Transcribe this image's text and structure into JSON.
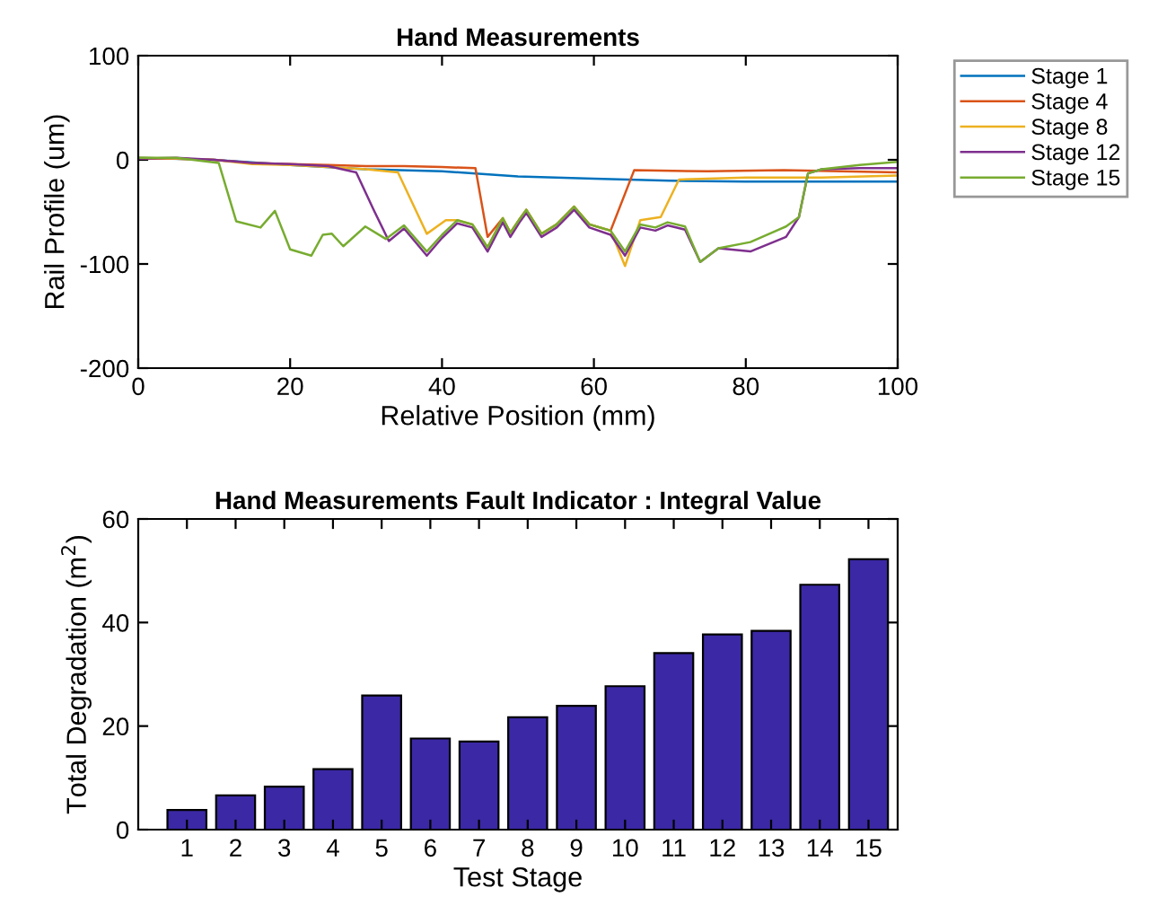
{
  "chart_data": [
    {
      "type": "line",
      "title": "Hand Measurements",
      "xlabel": "Relative Position (mm)",
      "ylabel": "Rail Profile (um)",
      "xlim": [
        0,
        100
      ],
      "ylim": [
        -200,
        100
      ],
      "xticks": [
        0,
        20,
        40,
        60,
        80,
        100
      ],
      "yticks": [
        -200,
        -100,
        0,
        100
      ],
      "legend": "top right",
      "grid": false,
      "line_style": "solid",
      "marker": "none",
      "series": [
        {
          "name": "Stage 1",
          "color": "#0072bd",
          "x": [
            0,
            10,
            20,
            30,
            40,
            50,
            60,
            70,
            80,
            90,
            100
          ],
          "values": [
            2,
            0,
            -5,
            -9,
            -11,
            -16,
            -18,
            -20,
            -21,
            -21,
            -21
          ]
        },
        {
          "name": "Stage 4",
          "color": "#d95319",
          "x": [
            0,
            5,
            10,
            15,
            20,
            25,
            30,
            35,
            40,
            44.4,
            46,
            48,
            49,
            50.3,
            51.1,
            53.1,
            55.1,
            57.4,
            59.4,
            62.2,
            65.3,
            75,
            85,
            100
          ],
          "values": [
            1,
            1,
            0,
            -3,
            -4,
            -5,
            -6,
            -6,
            -7,
            -8,
            -74,
            -56,
            -70,
            -56,
            -48,
            -71,
            -62,
            -45,
            -62,
            -68,
            -10,
            -11,
            -10,
            -12
          ]
        },
        {
          "name": "Stage 8",
          "color": "#edb120",
          "x": [
            0,
            5,
            10,
            15,
            20,
            25,
            30,
            34.2,
            38,
            40.5,
            42,
            44,
            46,
            48,
            49,
            50.3,
            51.1,
            53.1,
            55.1,
            57.4,
            59.4,
            62.2,
            64.1,
            66.1,
            68.8,
            71.2,
            80,
            90,
            100
          ],
          "values": [
            2,
            1,
            0,
            -4,
            -5,
            -7,
            -9,
            -12,
            -71,
            -58,
            -58,
            -62,
            -84,
            -56,
            -70,
            -56,
            -48,
            -71,
            -62,
            -45,
            -62,
            -68,
            -102,
            -58,
            -55,
            -19,
            -17,
            -17,
            -15
          ]
        },
        {
          "name": "Stage 12",
          "color": "#7e2f8e",
          "x": [
            0,
            5,
            10,
            15,
            20,
            25,
            28.7,
            31,
            33,
            35,
            38,
            40,
            42,
            44,
            46,
            48,
            49,
            50.3,
            51.1,
            53.1,
            55.1,
            57.4,
            59.4,
            62.2,
            64.1,
            66.1,
            68.1,
            69.7,
            72,
            74,
            76.4,
            80.6,
            85.3,
            87,
            88.2,
            90,
            95,
            100
          ],
          "values": [
            1,
            2,
            0,
            -3,
            -4,
            -6,
            -12,
            -48,
            -78,
            -66,
            -92,
            -75,
            -61,
            -65,
            -88,
            -60,
            -74,
            -59,
            -51,
            -74,
            -65,
            -48,
            -65,
            -72,
            -92,
            -65,
            -68,
            -63,
            -67,
            -98,
            -85,
            -88,
            -74,
            -55,
            -13,
            -9,
            -8,
            -8
          ]
        },
        {
          "name": "Stage 15",
          "color": "#77ac30",
          "x": [
            0,
            5,
            10.6,
            12.9,
            16.1,
            18,
            20,
            22.8,
            24.3,
            25.5,
            27,
            29.9,
            32.6,
            35,
            38,
            40,
            42,
            44,
            46,
            48,
            49,
            50.3,
            51.1,
            53.1,
            55.1,
            57.4,
            59.4,
            62.2,
            64.1,
            66.1,
            68.1,
            69.7,
            72,
            74,
            76.4,
            80.6,
            85.3,
            87,
            88.2,
            90,
            95,
            100
          ],
          "values": [
            2,
            2,
            -3,
            -59,
            -65,
            -49,
            -86,
            -92,
            -72,
            -71,
            -83,
            -64,
            -76,
            -63,
            -88,
            -72,
            -58,
            -62,
            -84,
            -56,
            -70,
            -56,
            -48,
            -71,
            -62,
            -45,
            -62,
            -68,
            -88,
            -62,
            -65,
            -60,
            -64,
            -98,
            -85,
            -79,
            -64,
            -55,
            -13,
            -9,
            -5,
            -2
          ]
        }
      ]
    },
    {
      "type": "bar",
      "title": "Hand Measurements Fault Indicator : Integral Value",
      "xlabel": "Test Stage",
      "ylabel": "Total Degradation (m$^{2}$)",
      "categories": [
        "1",
        "2",
        "3",
        "4",
        "5",
        "6",
        "7",
        "8",
        "9",
        "10",
        "11",
        "12",
        "13",
        "14",
        "15"
      ],
      "values": [
        3.8,
        6.6,
        8.3,
        11.7,
        25.9,
        17.6,
        17.0,
        21.7,
        23.9,
        27.7,
        34.1,
        37.7,
        38.4,
        47.3,
        52.2
      ],
      "color": "#3a28a5",
      "ylim": [
        0,
        60
      ],
      "yticks": [
        0,
        20,
        40,
        60
      ],
      "grid": false,
      "legend": false
    }
  ]
}
